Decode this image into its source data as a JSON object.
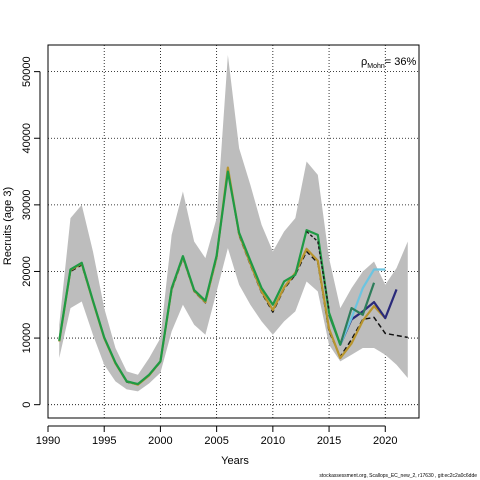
{
  "chart_data": {
    "type": "line",
    "xlabel": "Years",
    "ylabel": "Recruits (age 3)",
    "xlim": [
      1990,
      2023
    ],
    "ylim": [
      -2000,
      54000
    ],
    "x_ticks": [
      1990,
      1995,
      2000,
      2005,
      2010,
      2015,
      2020
    ],
    "y_ticks": [
      0,
      10000,
      20000,
      30000,
      40000,
      50000
    ],
    "grid": true,
    "annotation": {
      "rho_symbol": "ρ",
      "rho_subscript": "Mohn",
      "rho_value": "= 36%"
    },
    "band": {
      "x": [
        1991,
        1992,
        1993,
        1994,
        1995,
        1996,
        1997,
        1998,
        1999,
        2000,
        2001,
        2002,
        2003,
        2004,
        2005,
        2006,
        2007,
        2008,
        2009,
        2010,
        2011,
        2012,
        2013,
        2014,
        2015,
        2016,
        2017,
        2018,
        2019,
        2020,
        2021,
        2022
      ],
      "lower": [
        7000,
        14500,
        15500,
        10500,
        6000,
        3500,
        2300,
        2000,
        3200,
        4800,
        11000,
        15000,
        12000,
        10500,
        17000,
        23500,
        18000,
        15000,
        12500,
        10500,
        12500,
        14000,
        18500,
        17000,
        9000,
        6500,
        7500,
        8500,
        8500,
        7500,
        6000,
        4000
      ],
      "upper": [
        12000,
        28000,
        30000,
        23000,
        14500,
        8500,
        5000,
        4500,
        7000,
        10000,
        25500,
        32000,
        24500,
        22000,
        28000,
        52500,
        38500,
        33000,
        27000,
        23000,
        26000,
        28000,
        36500,
        34500,
        22000,
        14500,
        17500,
        20000,
        21500,
        18000,
        20500,
        24500
      ]
    },
    "series": [
      {
        "values_x": [
          1991,
          1992,
          1993,
          1994,
          1995,
          1996,
          1997,
          1998,
          1999,
          2000,
          2001,
          2002,
          2003,
          2004,
          2005,
          2006,
          2007,
          2008,
          2009,
          2010,
          2011,
          2012,
          2013,
          2014,
          2015,
          2016,
          2017,
          2018,
          2019,
          2020,
          2021,
          2022
        ],
        "values_y": [
          9500,
          20000,
          21000,
          15500,
          10000,
          6200,
          3400,
          3000,
          4400,
          6400,
          17200,
          22000,
          17000,
          15300,
          22000,
          35400,
          25400,
          21000,
          16800,
          13900,
          17400,
          19500,
          23000,
          21300,
          11000,
          7200,
          9800,
          12800,
          13100,
          10700,
          10400,
          10100
        ],
        "color": "#111111",
        "width": 1.5,
        "dash": "5,3"
      },
      {
        "values_x": [
          1991,
          1992,
          1993,
          1994,
          1995,
          1996,
          1997,
          1998,
          1999,
          2000,
          2001,
          2002,
          2003,
          2004,
          2005,
          2006,
          2007,
          2008,
          2009,
          2010,
          2011,
          2012,
          2013,
          2014,
          2015,
          2016,
          2017,
          2018,
          2019,
          2020
        ],
        "values_y": [
          9500,
          20200,
          21200,
          15500,
          10000,
          6200,
          3500,
          3000,
          4400,
          6500,
          17400,
          22200,
          17100,
          15400,
          22200,
          35600,
          25600,
          21200,
          17000,
          14200,
          17600,
          19800,
          23400,
          21600,
          11400,
          7000,
          9200,
          12600,
          14800,
          13000
        ],
        "color": "#b8952e",
        "width": 2.2,
        "dash": ""
      },
      {
        "values_x": [
          2016,
          2017,
          2018,
          2019,
          2020,
          2021
        ],
        "values_y": [
          9000,
          12800,
          14000,
          15400,
          13000,
          17300
        ],
        "color": "#2a2a7a",
        "width": 2.2,
        "dash": ""
      },
      {
        "values_x": [
          2016,
          2017,
          2018,
          2019,
          2020
        ],
        "values_y": [
          9000,
          13000,
          17500,
          20300,
          20300
        ],
        "color": "#6cc4e0",
        "width": 2.2,
        "dash": ""
      },
      {
        "values_x": [
          2015,
          2016,
          2017,
          2018,
          2019
        ],
        "values_y": [
          13500,
          9000,
          14500,
          13500,
          18300
        ],
        "color": "#2e7d5b",
        "width": 2.2,
        "dash": ""
      },
      {
        "values_x": [
          1991,
          1992,
          1993,
          1994,
          1995,
          1996,
          1997,
          1998,
          1999,
          2000,
          2001,
          2002,
          2003,
          2004,
          2005,
          2006,
          2007,
          2008,
          2009,
          2010,
          2011,
          2012,
          2013,
          2014,
          2015,
          2016
        ],
        "values_y": [
          9600,
          20300,
          21300,
          15600,
          10100,
          6300,
          3500,
          3100,
          4500,
          6500,
          17500,
          22300,
          17200,
          15600,
          22400,
          35000,
          25800,
          21600,
          17500,
          15000,
          18500,
          19500,
          26200,
          25500,
          13800,
          9000
        ],
        "color": "#1f9a44",
        "width": 2.2,
        "dash": ""
      },
      {
        "values_x": [
          2013,
          2014,
          2015
        ],
        "values_y": [
          26000,
          24500,
          14200
        ],
        "color": "#1a1a1a",
        "width": 1.4,
        "dash": "3,2"
      }
    ]
  },
  "footer": "stockassessment.org, Scallops_EC_new_2, r17630 , git:ec2c2a0c6dde"
}
